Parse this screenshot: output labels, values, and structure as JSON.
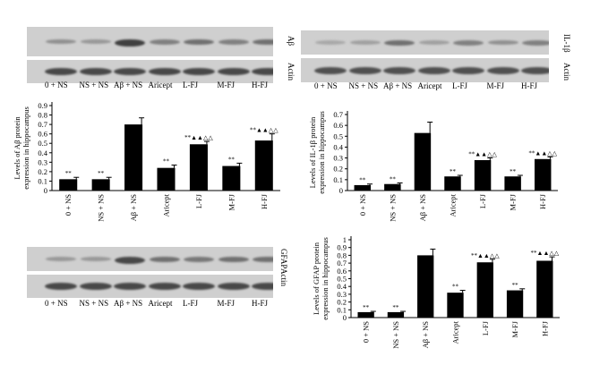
{
  "lane_labels": [
    "0 + NS",
    "NS + NS",
    "Aβ + NS",
    "Aricept",
    "L-FJ",
    "M-FJ",
    "H-FJ"
  ],
  "blots": [
    {
      "id": "abeta",
      "target_label": "Aβ",
      "control_label": "Actin",
      "target_intensity": [
        0.35,
        0.3,
        0.85,
        0.45,
        0.55,
        0.45,
        0.55
      ],
      "control_intensity": [
        0.8,
        0.8,
        0.8,
        0.8,
        0.8,
        0.8,
        0.8
      ]
    },
    {
      "id": "il1b",
      "target_label": "IL-1β",
      "control_label": "Actin",
      "target_intensity": [
        0.2,
        0.25,
        0.55,
        0.25,
        0.45,
        0.35,
        0.45
      ],
      "control_intensity": [
        0.75,
        0.75,
        0.75,
        0.75,
        0.75,
        0.75,
        0.75
      ]
    },
    {
      "id": "gfap",
      "target_label": "GFAP",
      "control_label": "Actin",
      "target_intensity": [
        0.3,
        0.3,
        0.8,
        0.55,
        0.5,
        0.55,
        0.55
      ],
      "control_intensity": [
        0.8,
        0.8,
        0.8,
        0.8,
        0.8,
        0.8,
        0.8
      ]
    }
  ],
  "chart_data": [
    {
      "type": "bar",
      "ylabel": [
        "Levels of Aβ protein",
        "expression in hippocampus"
      ],
      "categories": [
        "0 + NS",
        "NS + NS",
        "Aβ + NS",
        "Aricept",
        "L-FJ",
        "M-FJ",
        "H-FJ"
      ],
      "values": [
        0.12,
        0.12,
        0.7,
        0.24,
        0.49,
        0.26,
        0.53
      ],
      "errors": [
        0.02,
        0.02,
        0.07,
        0.03,
        0.03,
        0.03,
        0.07
      ],
      "ylim": [
        0,
        0.9
      ],
      "yticks": [
        "0",
        "0.1",
        "0.2",
        "0.3",
        "0.4",
        "0.5",
        "0.6",
        "0.7",
        "0.8",
        "0.9"
      ],
      "annotations": [
        "**",
        "**",
        "",
        "**",
        "**▲▲△△",
        "**",
        "**▲▲△△"
      ]
    },
    {
      "type": "bar",
      "ylabel": [
        "Levels of IL-1β protein",
        "expression in hippocampus"
      ],
      "categories": [
        "0 + NS",
        "NS + NS",
        "Aβ + NS",
        "Aricept",
        "L-FJ",
        "M-FJ",
        "H-FJ"
      ],
      "values": [
        0.05,
        0.06,
        0.53,
        0.13,
        0.28,
        0.13,
        0.29
      ],
      "errors": [
        0.01,
        0.01,
        0.1,
        0.01,
        0.02,
        0.01,
        0.02
      ],
      "ylim": [
        0,
        0.7
      ],
      "yticks": [
        "0",
        "0.1",
        "0.2",
        "0.3",
        "0.4",
        "0.5",
        "0.6",
        "0.7"
      ],
      "annotations": [
        "**",
        "**",
        "",
        "**",
        "**▲▲△△",
        "**",
        "**▲▲△△"
      ]
    },
    {
      "type": "bar",
      "ylabel": [
        "Levels of GFAP protein",
        "expression in hippocampus"
      ],
      "categories": [
        "0 + NS",
        "NS + NS",
        "Aβ + NS",
        "Aricept",
        "L-FJ",
        "M-FJ",
        "H-FJ"
      ],
      "values": [
        0.07,
        0.07,
        0.8,
        0.32,
        0.71,
        0.35,
        0.73
      ],
      "errors": [
        0.01,
        0.01,
        0.08,
        0.03,
        0.04,
        0.02,
        0.05
      ],
      "ylim": [
        0,
        1
      ],
      "yticks": [
        "0",
        "0.1",
        "0.2",
        "0.3",
        "0.4",
        "0.5",
        "0.6",
        "0.7",
        "0.8",
        "0.9",
        "1"
      ],
      "annotations": [
        "**",
        "**",
        "",
        "**",
        "**▲▲△△",
        "**",
        "**▲▲△△"
      ]
    }
  ]
}
